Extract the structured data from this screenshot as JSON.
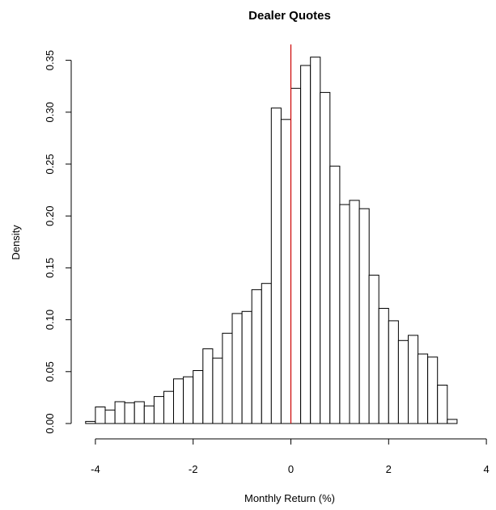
{
  "chart_data": {
    "type": "bar",
    "subtype": "histogram",
    "title": "Dealer Quotes",
    "xlabel": "Monthly Return (%)",
    "ylabel": "Density",
    "xlim": [
      -4.2,
      4.2
    ],
    "ylim": [
      0,
      0.36
    ],
    "x_ticks": [
      -4,
      -2,
      0,
      2,
      4
    ],
    "y_ticks": [
      0.0,
      0.05,
      0.1,
      0.15,
      0.2,
      0.25,
      0.3,
      0.35
    ],
    "y_tick_labels": [
      "0.00",
      "0.05",
      "0.10",
      "0.15",
      "0.20",
      "0.25",
      "0.30",
      "0.35"
    ],
    "x_tick_labels": [
      "-4",
      "-2",
      "0",
      "2",
      "4"
    ],
    "bin_width": 0.2,
    "bins_start": -4.2,
    "values": [
      0.002,
      0.016,
      0.013,
      0.021,
      0.02,
      0.021,
      0.017,
      0.026,
      0.031,
      0.043,
      0.045,
      0.051,
      0.072,
      0.063,
      0.087,
      0.106,
      0.108,
      0.129,
      0.135,
      0.304,
      0.293,
      0.323,
      0.345,
      0.353,
      0.319,
      0.248,
      0.211,
      0.215,
      0.207,
      0.143,
      0.111,
      0.099,
      0.08,
      0.085,
      0.067,
      0.064,
      0.037,
      0.004
    ],
    "reference_line": {
      "x": 0,
      "color": "#cc0000"
    },
    "bar_fill": "#ffffff",
    "bar_stroke": "#000000",
    "grid": false
  }
}
